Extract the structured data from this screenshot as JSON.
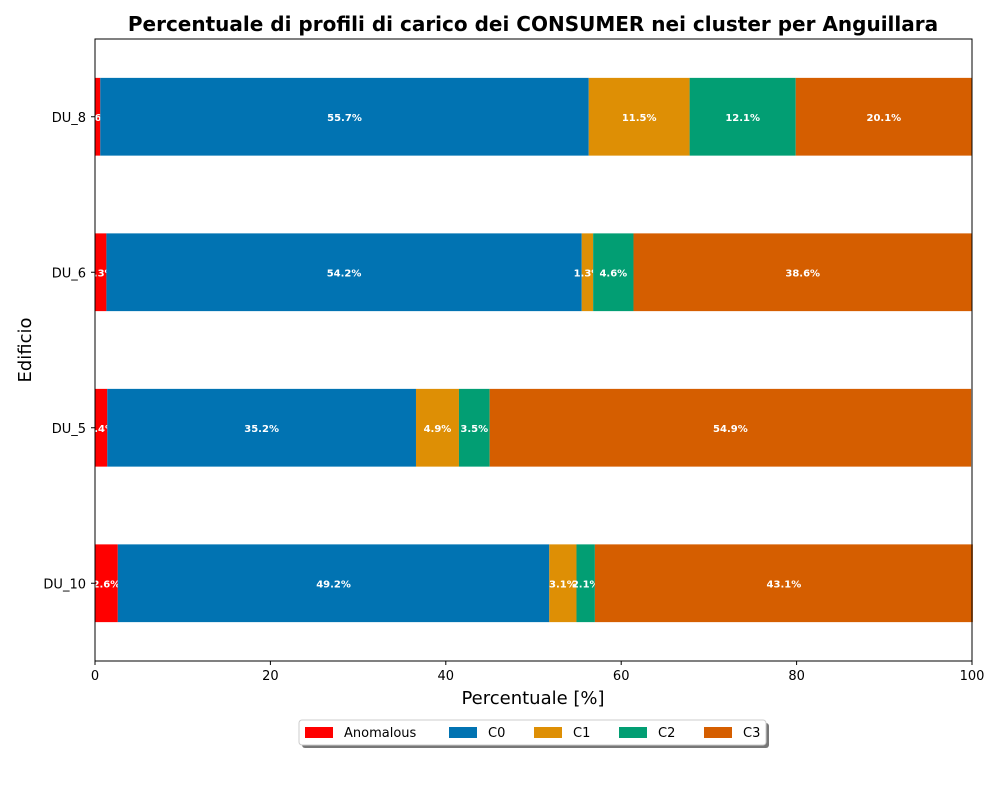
{
  "chart_data": {
    "type": "bar",
    "orientation": "horizontal",
    "stacked": true,
    "title": "Percentuale di profili di carico dei CONSUMER nei cluster per Anguillara",
    "xlabel": "Percentuale [%]",
    "ylabel": "Edificio",
    "xlim": [
      0,
      100
    ],
    "xticks": [
      0,
      20,
      40,
      60,
      80,
      100
    ],
    "categories": [
      "DU_10",
      "DU_5",
      "DU_6",
      "DU_8"
    ],
    "series": [
      {
        "name": "Anomalous",
        "color": "#ff0000",
        "values": [
          2.6,
          1.4,
          1.3,
          0.6
        ],
        "labels": [
          "2.6%",
          "1.4%",
          "1.3%",
          "0.6%"
        ]
      },
      {
        "name": "C0",
        "color": "#0173b2",
        "values": [
          49.2,
          35.2,
          54.2,
          55.7
        ],
        "labels": [
          "49.2%",
          "35.2%",
          "54.2%",
          "55.7%"
        ]
      },
      {
        "name": "C1",
        "color": "#de8f05",
        "values": [
          3.1,
          4.9,
          1.3,
          11.5
        ],
        "labels": [
          "3.1%",
          "4.9%",
          "1.3%",
          "11.5%"
        ]
      },
      {
        "name": "C2",
        "color": "#029e73",
        "values": [
          2.1,
          3.5,
          4.6,
          12.1
        ],
        "labels": [
          "2.1%",
          "3.5%",
          "4.6%",
          "12.1%"
        ]
      },
      {
        "name": "C3",
        "color": "#d55e00",
        "values": [
          43.1,
          54.9,
          38.6,
          20.1
        ],
        "labels": [
          "43.1%",
          "54.9%",
          "38.6%",
          "20.1%"
        ]
      }
    ],
    "legend_position": "bottom-center",
    "grid": false
  }
}
